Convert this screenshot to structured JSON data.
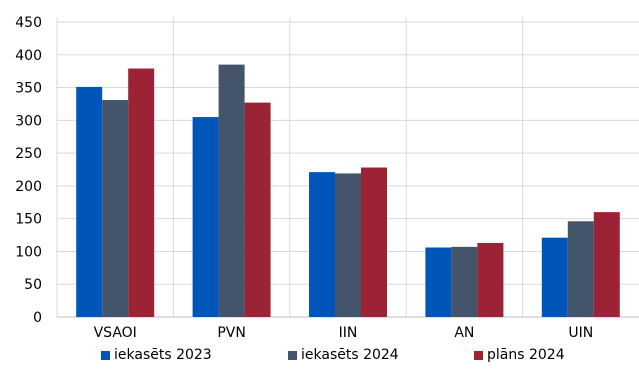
{
  "chart_data": {
    "type": "bar",
    "categories": [
      "VSAOI",
      "PVN",
      "IIN",
      "AN",
      "UIN"
    ],
    "series": [
      {
        "name": "iekasēts 2023",
        "values": [
          351,
          305,
          221,
          106,
          121
        ],
        "color": "#0055B8"
      },
      {
        "name": "iekasēts 2024",
        "values": [
          331,
          385,
          219,
          107,
          146
        ],
        "color": "#44546A"
      },
      {
        "name": "plāns 2024",
        "values": [
          379,
          327,
          228,
          113,
          160
        ],
        "color": "#9B2335"
      }
    ],
    "title": "",
    "xlabel": "",
    "ylabel": "",
    "ylim": [
      0,
      450
    ],
    "yticks": [
      "0",
      "50",
      "100",
      "150",
      "200",
      "250",
      "300",
      "350",
      "400",
      "450"
    ],
    "grid": true,
    "legend_position": "bottom"
  }
}
